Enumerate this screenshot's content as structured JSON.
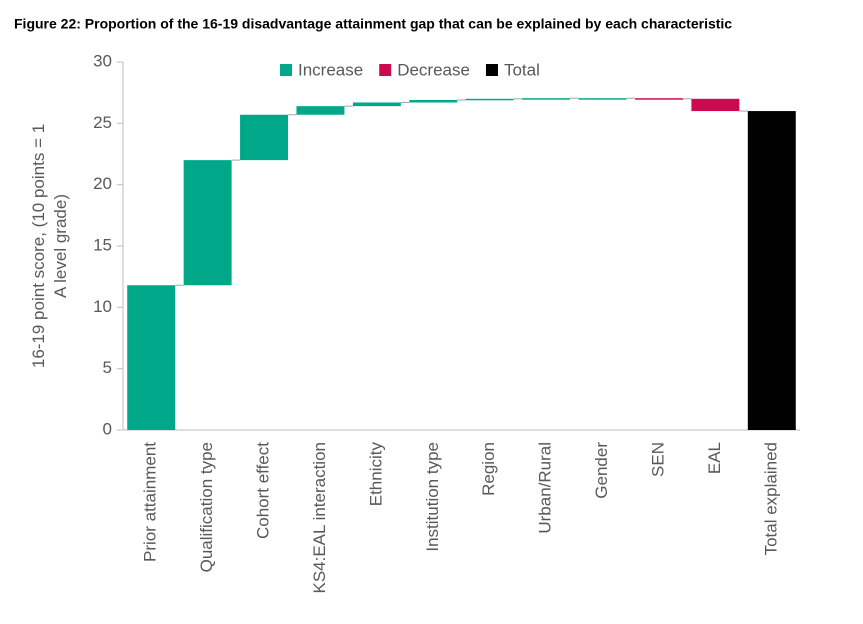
{
  "chart_data": {
    "type": "waterfall",
    "title": "Figure 22: Proportion of the 16-19 disadvantage attainment gap that can be explained by each characteristic",
    "y_label": "16-19 point score, (10 points = 1 A level grade)",
    "categories": [
      "Prior attainment",
      "Qualification type",
      "Cohort effect",
      "KS4:EAL interaction",
      "Ethnicity",
      "Institution type",
      "Region",
      "Urban/Rural",
      "Gender",
      "SEN",
      "EAL",
      "Total explained"
    ],
    "values": [
      11.8,
      10.2,
      3.7,
      0.7,
      0.3,
      0.2,
      0.1,
      0.05,
      0.0,
      -0.05,
      -1.0,
      26.0
    ],
    "measures": [
      "relative",
      "relative",
      "relative",
      "relative",
      "relative",
      "relative",
      "relative",
      "relative",
      "relative",
      "relative",
      "relative",
      "total"
    ],
    "legend": [
      {
        "name": "Increase",
        "color": "#00a88a"
      },
      {
        "name": "Decrease",
        "color": "#cc0a4f"
      },
      {
        "name": "Total",
        "color": "#000000"
      }
    ],
    "ylim": [
      0,
      30
    ],
    "yticks": [
      0,
      5,
      10,
      15,
      20,
      25,
      30
    ]
  }
}
